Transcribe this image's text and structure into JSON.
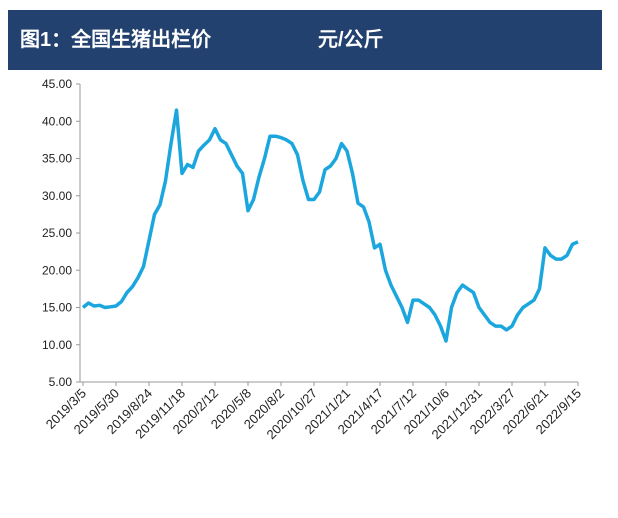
{
  "chart_data": {
    "type": "line",
    "title": "图1：全国生猪出栏价",
    "unit": "元/公斤",
    "categories": [
      "2019/3/5",
      null,
      null,
      null,
      null,
      null,
      "2019/5/30",
      null,
      null,
      null,
      null,
      null,
      "2019/8/24",
      null,
      null,
      null,
      null,
      null,
      "2019/11/18",
      null,
      null,
      null,
      null,
      null,
      "2020/2/12",
      null,
      null,
      null,
      null,
      null,
      "2020/5/8",
      null,
      null,
      null,
      null,
      null,
      "2020/8/2",
      null,
      null,
      null,
      null,
      null,
      "2020/10/27",
      null,
      null,
      null,
      null,
      null,
      "2021/1/21",
      null,
      null,
      null,
      null,
      null,
      "2021/4/17",
      null,
      null,
      null,
      null,
      null,
      "2021/7/12",
      null,
      null,
      null,
      null,
      null,
      "2021/10/6",
      null,
      null,
      null,
      null,
      null,
      "2021/12/31",
      null,
      null,
      null,
      null,
      null,
      "2022/3/27",
      null,
      null,
      null,
      null,
      null,
      "2022/6/21",
      null,
      null,
      null,
      null,
      null,
      "2022/9/15"
    ],
    "series": [
      {
        "color": "#1ba6de",
        "values": [
          15.0,
          15.6,
          15.2,
          15.3,
          15.0,
          15.1,
          15.2,
          15.8,
          17.0,
          17.8,
          19.0,
          20.5,
          24.0,
          27.5,
          28.8,
          32.0,
          37.0,
          41.5,
          33.0,
          34.2,
          33.8,
          36.0,
          36.8,
          37.5,
          39.0,
          37.5,
          37.0,
          35.5,
          34.0,
          33.0,
          28.0,
          29.5,
          32.5,
          35.0,
          38.0,
          38.0,
          37.8,
          37.5,
          37.0,
          35.5,
          32.0,
          29.5,
          29.5,
          30.5,
          33.5,
          34.0,
          35.0,
          37.0,
          36.0,
          33.0,
          29.0,
          28.5,
          26.5,
          23.0,
          23.5,
          20.0,
          18.0,
          16.5,
          15.0,
          13.0,
          16.0,
          16.0,
          15.5,
          15.0,
          14.0,
          12.5,
          10.5,
          15.0,
          17.0,
          18.0,
          17.5,
          17.0,
          15.0,
          14.0,
          13.0,
          12.5,
          12.5,
          12.0,
          12.5,
          14.0,
          15.0,
          15.5,
          16.0,
          17.5,
          23.0,
          22.0,
          21.5,
          21.5,
          22.0,
          23.5,
          23.8
        ]
      }
    ],
    "ylim": [
      5,
      45
    ],
    "yticks": [
      {
        "value": 5,
        "label": "5.00"
      },
      {
        "value": 10,
        "label": "10.00"
      },
      {
        "value": 15,
        "label": "15.00"
      },
      {
        "value": 20,
        "label": "20.00"
      },
      {
        "value": 25,
        "label": "25.00"
      },
      {
        "value": 30,
        "label": "30.00"
      },
      {
        "value": 35,
        "label": "35.00"
      },
      {
        "value": 40,
        "label": "40.00"
      },
      {
        "value": 45,
        "label": "45.00"
      }
    ],
    "grid": false
  }
}
